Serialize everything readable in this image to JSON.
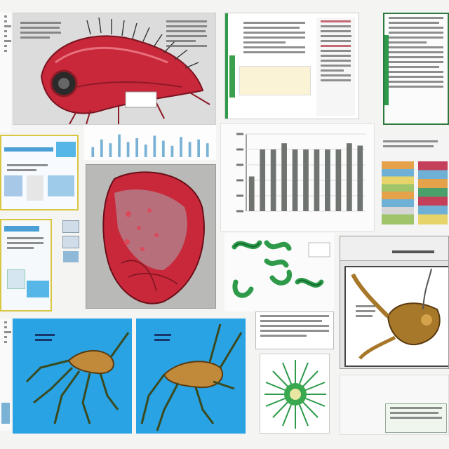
{
  "card_texts": {
    "biology_panel_caption": "",
    "heart_caption": "",
    "crab_window_title": "",
    "blue_panel_left_title": "",
    "blue_panel_right_title": ""
  },
  "chart_data": {
    "type": "bar",
    "categories": [
      "",
      "",
      "",
      "",
      "",
      "",
      "",
      "",
      "",
      "",
      ""
    ],
    "values": [
      45,
      80,
      80,
      88,
      80,
      80,
      80,
      80,
      80,
      88,
      85
    ],
    "title": "",
    "xlabel": "",
    "ylabel": "",
    "ylim": [
      0,
      100
    ],
    "grid": true,
    "colors": {
      "bar": "#6f7470",
      "axis": "#444444"
    }
  },
  "mini_bar_data": {
    "values": [
      40,
      70,
      55,
      90,
      60,
      75,
      50,
      85,
      65,
      45,
      80,
      60,
      70,
      55
    ],
    "colors": {
      "bar": "#7ab2d6"
    }
  },
  "colors": {
    "flesh_red": "#c8283a",
    "blue_panel": "#29a3e3",
    "green_accent": "#2e9a4a",
    "specimen_brown": "#a8782a"
  },
  "icons": [
    "dna-icon",
    "specimen-icon"
  ]
}
